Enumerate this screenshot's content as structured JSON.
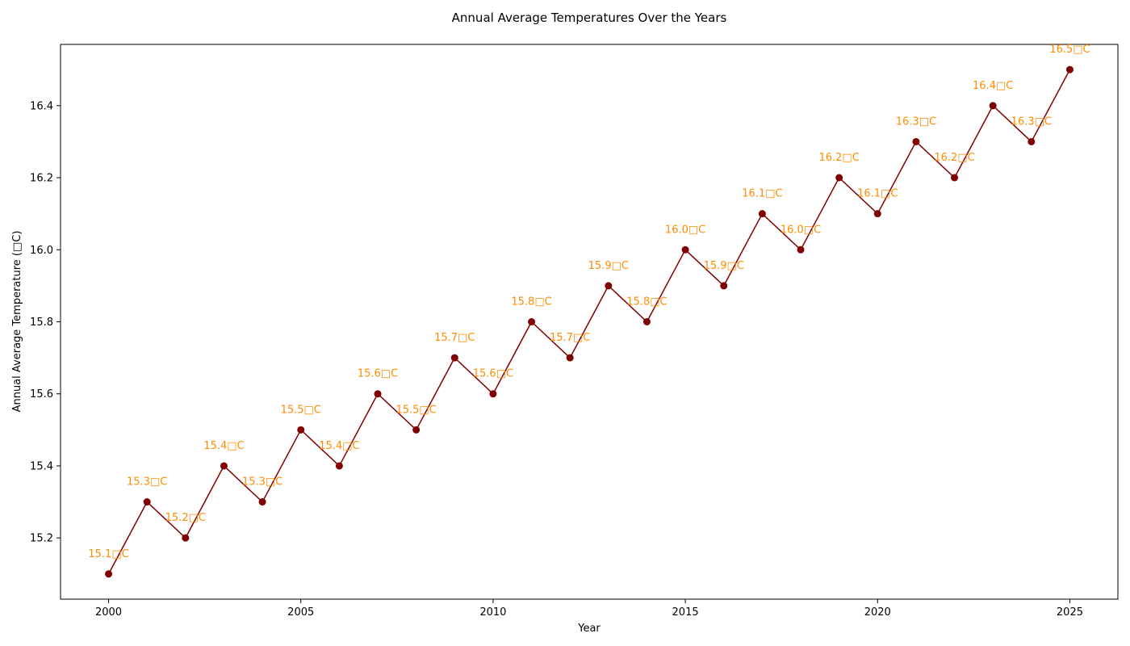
{
  "chart_data": {
    "type": "line",
    "title": "Annual Average Temperatures Over the Years",
    "xlabel": "Year",
    "ylabel": "Annual Average Temperature (□C)",
    "x": [
      2000,
      2001,
      2002,
      2003,
      2004,
      2005,
      2006,
      2007,
      2008,
      2009,
      2010,
      2011,
      2012,
      2013,
      2014,
      2015,
      2016,
      2017,
      2018,
      2019,
      2020,
      2021,
      2022,
      2023,
      2024,
      2025
    ],
    "series": [
      {
        "values": [
          15.1,
          15.3,
          15.2,
          15.4,
          15.3,
          15.5,
          15.4,
          15.6,
          15.5,
          15.7,
          15.6,
          15.8,
          15.7,
          15.9,
          15.8,
          16.0,
          15.9,
          16.1,
          16.0,
          16.2,
          16.1,
          16.3,
          16.2,
          16.4,
          16.3,
          16.5
        ],
        "labels": [
          "15.1□C",
          "15.3□C",
          "15.2□C",
          "15.4□C",
          "15.3□C",
          "15.5□C",
          "15.4□C",
          "15.6□C",
          "15.5□C",
          "15.7□C",
          "15.6□C",
          "15.8□C",
          "15.7□C",
          "15.9□C",
          "15.8□C",
          "16.0□C",
          "15.9□C",
          "16.1□C",
          "16.0□C",
          "16.2□C",
          "16.1□C",
          "16.3□C",
          "16.2□C",
          "16.4□C",
          "16.3□C",
          "16.5□C"
        ],
        "line_color": "#800000",
        "marker_color": "#800000",
        "label_color": "#ff8c00"
      }
    ],
    "xticks": [
      2000,
      2005,
      2010,
      2015,
      2020,
      2025
    ],
    "yticks": [
      15.2,
      15.4,
      15.6,
      15.8,
      16.0,
      16.2,
      16.4
    ],
    "xlim": [
      1998.75,
      2026.25
    ],
    "ylim": [
      15.03,
      16.57
    ],
    "grid": false,
    "legend": "none"
  }
}
